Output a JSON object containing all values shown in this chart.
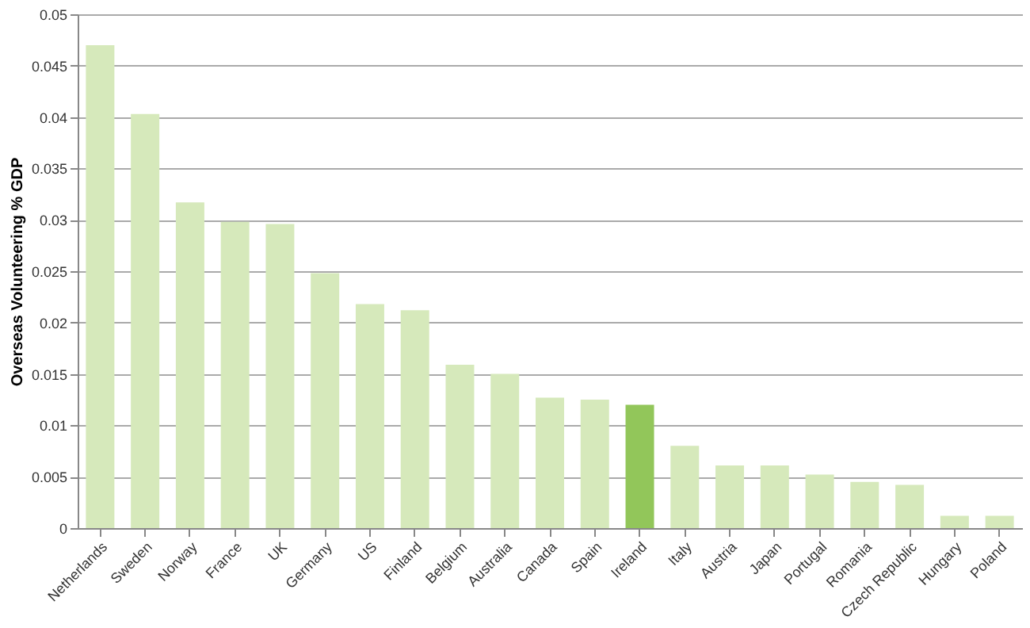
{
  "chart_data": {
    "type": "bar",
    "ylabel": "Overseas Volunteering % GDP",
    "categories": [
      "Netherlands",
      "Sweden",
      "Norway",
      "France",
      "UK",
      "Germany",
      "US",
      "Finland",
      "Belgium",
      "Australia",
      "Canada",
      "Spain",
      "Ireland",
      "Italy",
      "Austria",
      "Japan",
      "Portugal",
      "Romania",
      "Czech Republic",
      "Hungary",
      "Poland"
    ],
    "values": [
      0.047,
      0.0403,
      0.0317,
      0.0298,
      0.0296,
      0.0248,
      0.0218,
      0.0212,
      0.0159,
      0.015,
      0.0127,
      0.0125,
      0.012,
      0.008,
      0.0061,
      0.0061,
      0.0052,
      0.0045,
      0.0042,
      0.0012,
      0.0012
    ],
    "colors": [
      "#d6e9bb",
      "#d6e9bb",
      "#d6e9bb",
      "#d6e9bb",
      "#d6e9bb",
      "#d6e9bb",
      "#d6e9bb",
      "#d6e9bb",
      "#d6e9bb",
      "#d6e9bb",
      "#d6e9bb",
      "#d6e9bb",
      "#92c65a",
      "#d6e9bb",
      "#d6e9bb",
      "#d6e9bb",
      "#d6e9bb",
      "#d6e9bb",
      "#d6e9bb",
      "#d6e9bb",
      "#d6e9bb"
    ],
    "ylim": [
      0,
      0.05
    ],
    "yticks": [
      0,
      0.005,
      0.01,
      0.015,
      0.02,
      0.025,
      0.03,
      0.035,
      0.04,
      0.045,
      0.05
    ],
    "grid": "y"
  }
}
